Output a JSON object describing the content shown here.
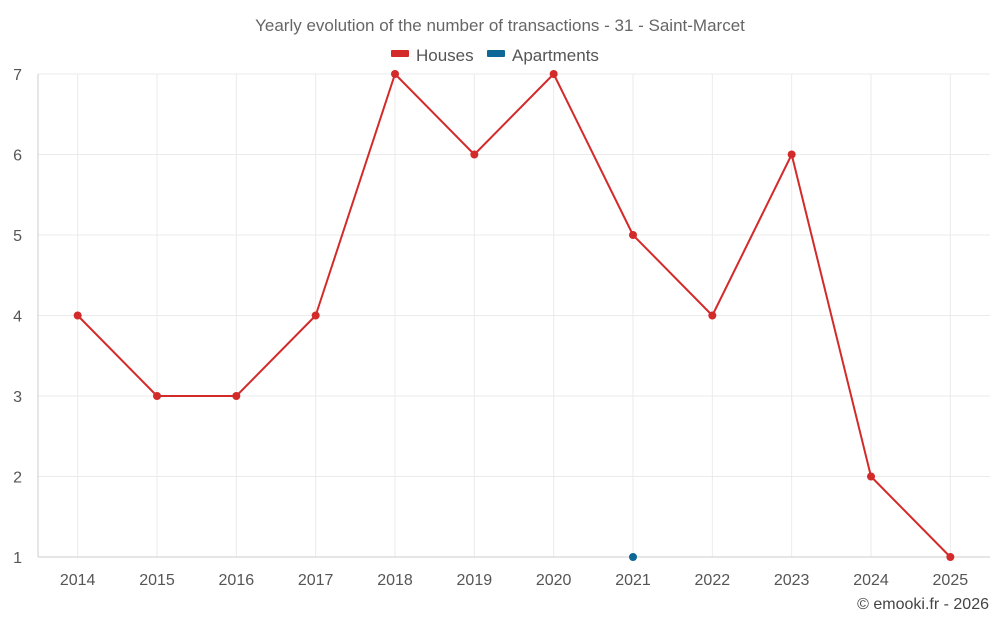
{
  "chart_data": {
    "type": "line",
    "title": "Yearly evolution of the number of transactions - 31 - Saint-Marcet",
    "categories": [
      "2014",
      "2015",
      "2016",
      "2017",
      "2018",
      "2019",
      "2020",
      "2021",
      "2022",
      "2023",
      "2024",
      "2025"
    ],
    "series": [
      {
        "name": "Houses",
        "color": "#d32a2a",
        "values": [
          4,
          3,
          3,
          4,
          7,
          6,
          7,
          5,
          4,
          6,
          2,
          1
        ]
      },
      {
        "name": "Apartments",
        "color": "#0d6897",
        "values": [
          null,
          null,
          null,
          null,
          null,
          null,
          null,
          1,
          null,
          null,
          null,
          null
        ]
      }
    ],
    "ylim": [
      1,
      7
    ],
    "yticks": [
      "1",
      "2",
      "3",
      "4",
      "5",
      "6",
      "7"
    ],
    "xlabel": "",
    "ylabel": "",
    "grid": true,
    "legend_position": "top-center"
  },
  "credit": "© emooki.fr - 2026"
}
